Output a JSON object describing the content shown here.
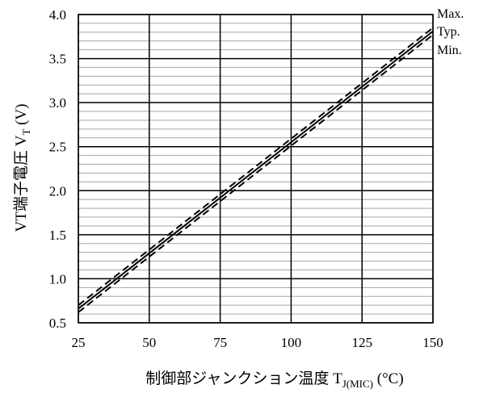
{
  "chart_data": {
    "type": "line",
    "xlabel": "制御部ジャンクション温度 T",
    "xlabel_sub": "J(MIC)",
    "xlabel_unit": " (°C)",
    "ylabel": "VT端子電圧 V",
    "ylabel_sub": "T",
    "ylabel_unit": " (V)",
    "xlim": [
      25,
      150
    ],
    "ylim": [
      0.5,
      4.0
    ],
    "x_ticks": [
      25,
      50,
      75,
      100,
      125,
      150
    ],
    "y_ticks": [
      "0.5",
      "1.0",
      "1.5",
      "2.0",
      "2.5",
      "3.0",
      "3.5",
      "4.0"
    ],
    "grid": true,
    "minor_grid_y": true,
    "series": [
      {
        "name": "Max.",
        "style": "dashed",
        "x": [
          25,
          150
        ],
        "y": [
          0.7,
          3.85
        ]
      },
      {
        "name": "Typ.",
        "style": "solid",
        "x": [
          25,
          150
        ],
        "y": [
          0.66,
          3.81
        ]
      },
      {
        "name": "Min.",
        "style": "dashed",
        "x": [
          25,
          150
        ],
        "y": [
          0.62,
          3.77
        ]
      }
    ],
    "colors": {
      "line": "#000000",
      "grid_major": "#000000",
      "grid_minor": "#a6a6a6"
    }
  }
}
